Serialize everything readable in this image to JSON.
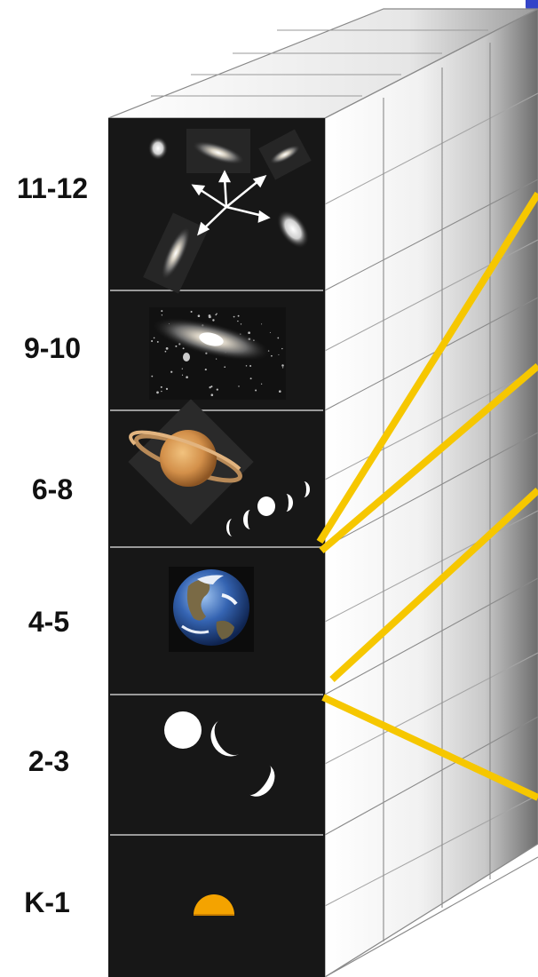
{
  "grade_labels": [
    "11-12",
    "9-10",
    "6-8",
    "4-5",
    "2-3",
    "K-1"
  ],
  "panels": [
    {
      "grade": "11-12",
      "icons": [
        "galaxy-cluster-icon",
        "expansion-arrows-icon"
      ]
    },
    {
      "grade": "9-10",
      "icons": [
        "spiral-galaxy-icon"
      ]
    },
    {
      "grade": "6-8",
      "icons": [
        "saturn-icon",
        "moon-phases-icon"
      ]
    },
    {
      "grade": "4-5",
      "icons": [
        "earth-icon"
      ]
    },
    {
      "grade": "2-3",
      "icons": [
        "moon-phases-icon"
      ]
    },
    {
      "grade": "K-1",
      "icons": [
        "sun-icon"
      ]
    }
  ],
  "colors": {
    "panel_bg": "#171717",
    "connector": "#f6c700",
    "sun": "#f4a300",
    "saturn": "#d99a52",
    "earth_ocean": "#2d5aa8",
    "title_fragment": "#3344c8"
  }
}
